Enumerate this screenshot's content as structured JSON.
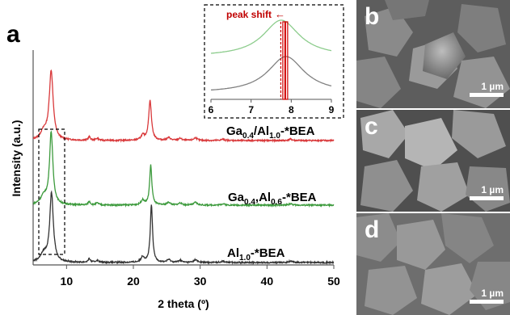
{
  "chart_data": {
    "type": "line",
    "panel_label": "a",
    "xlabel": "2 theta (º)",
    "ylabel": "Intensity (a.u.)",
    "xlim": [
      5,
      50
    ],
    "xticks": [
      "10",
      "20",
      "30",
      "40",
      "50"
    ],
    "series": [
      {
        "name_main": "Ga",
        "name_parts": [
          [
            "Ga",
            ""
          ],
          [
            "0.4",
            "sub"
          ],
          [
            "/Al",
            ""
          ],
          [
            "1.0",
            "sub"
          ],
          [
            "-*BEA",
            ""
          ]
        ],
        "color": "#d9393b",
        "offset": 2.0,
        "peaks": [
          [
            7.7,
            1.0,
            0.35
          ],
          [
            6.6,
            0.12,
            0.6
          ],
          [
            13.4,
            0.05,
            0.2
          ],
          [
            14.6,
            0.03,
            0.25
          ],
          [
            21.4,
            0.07,
            0.3
          ],
          [
            22.5,
            0.58,
            0.25
          ],
          [
            25.3,
            0.04,
            0.3
          ],
          [
            27.0,
            0.03,
            0.3
          ],
          [
            29.3,
            0.04,
            0.3
          ],
          [
            33.4,
            0.02,
            0.3
          ],
          [
            43.5,
            0.02,
            0.3
          ]
        ]
      },
      {
        "name_parts": [
          [
            "Ga",
            ""
          ],
          [
            "0.4",
            "sub"
          ],
          [
            ",Al",
            ""
          ],
          [
            "0.6",
            "sub"
          ],
          [
            "-*BEA",
            ""
          ]
        ],
        "color": "#3c9a3c",
        "offset": 1.0,
        "peaks": [
          [
            7.7,
            1.05,
            0.3
          ],
          [
            6.6,
            0.12,
            0.6
          ],
          [
            13.4,
            0.05,
            0.2
          ],
          [
            14.6,
            0.03,
            0.25
          ],
          [
            21.4,
            0.07,
            0.3
          ],
          [
            22.6,
            0.58,
            0.2
          ],
          [
            25.3,
            0.04,
            0.3
          ],
          [
            27.0,
            0.03,
            0.3
          ],
          [
            29.3,
            0.04,
            0.3
          ],
          [
            33.4,
            0.02,
            0.3
          ],
          [
            43.5,
            0.02,
            0.3
          ]
        ]
      },
      {
        "name_parts": [
          [
            "Al",
            ""
          ],
          [
            "1.0",
            "sub"
          ],
          [
            "-*BEA",
            ""
          ]
        ],
        "color": "#333333",
        "offset": 0.0,
        "peaks": [
          [
            7.75,
            1.0,
            0.32
          ],
          [
            6.6,
            0.12,
            0.6
          ],
          [
            13.4,
            0.05,
            0.2
          ],
          [
            14.6,
            0.03,
            0.25
          ],
          [
            21.4,
            0.08,
            0.3
          ],
          [
            22.7,
            0.84,
            0.2
          ],
          [
            25.3,
            0.04,
            0.3
          ],
          [
            27.0,
            0.03,
            0.3
          ],
          [
            29.3,
            0.04,
            0.3
          ],
          [
            33.4,
            0.02,
            0.3
          ],
          [
            43.5,
            0.02,
            0.3
          ]
        ]
      }
    ],
    "inset": {
      "title": "peak shift",
      "arrow": "←",
      "xlim": [
        6,
        9
      ],
      "xticks": [
        "6",
        "7",
        "8",
        "9"
      ],
      "marker_x": 7.85,
      "dashed_x": 7.74,
      "series": [
        {
          "color": "#8ccc8c",
          "center": 7.75
        },
        {
          "color": "#808080",
          "center": 7.87
        }
      ]
    }
  },
  "sem_panels": [
    {
      "label": "b",
      "scale": "1 µm"
    },
    {
      "label": "c",
      "scale": "1 µm"
    },
    {
      "label": "d",
      "scale": "1 µm"
    }
  ]
}
